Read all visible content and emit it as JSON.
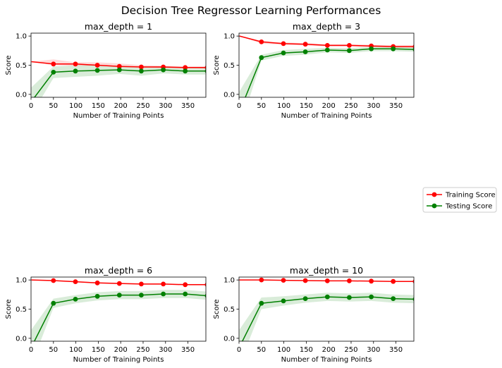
{
  "figure": {
    "title": "Decision Tree Regressor Learning Performances"
  },
  "colors": {
    "training": "#ff0000",
    "testing": "#008000"
  },
  "legend": {
    "placement": "right",
    "items": [
      {
        "label": "Training Score",
        "color": "#ff0000"
      },
      {
        "label": "Testing Score",
        "color": "#008000"
      }
    ]
  },
  "chart_data": [
    {
      "type": "line",
      "title": "max_depth = 1",
      "xlabel": "Number of Training Points",
      "ylabel": "Score",
      "xlim": [
        0,
        390
      ],
      "ylim": [
        -0.05,
        1.05
      ],
      "xticks": [
        0,
        50,
        100,
        150,
        200,
        250,
        300,
        350
      ],
      "yticks": [
        0.0,
        0.5,
        1.0
      ],
      "ytick_labels": [
        "0.0",
        "0.5",
        "1.0"
      ],
      "grid": false,
      "x": [
        1,
        50,
        99,
        148,
        197,
        246,
        295,
        344,
        393
      ],
      "series": [
        {
          "name": "Training Score",
          "values": [
            0.56,
            0.52,
            0.52,
            0.5,
            0.48,
            0.47,
            0.47,
            0.46,
            0.46
          ],
          "band": [
            [
              0.56,
              0.56
            ],
            [
              0.5,
              0.6
            ],
            [
              0.49,
              0.55
            ],
            [
              0.49,
              0.55
            ],
            [
              0.47,
              0.53
            ],
            [
              0.46,
              0.5
            ],
            [
              0.45,
              0.49
            ],
            [
              0.45,
              0.48
            ],
            [
              0.44,
              0.48
            ]
          ]
        },
        {
          "name": "Testing Score",
          "values": [
            -0.12,
            0.38,
            0.4,
            0.41,
            0.42,
            0.4,
            0.42,
            0.4,
            0.4
          ],
          "band": [
            [
              -0.35,
              0.12
            ],
            [
              0.28,
              0.48
            ],
            [
              0.3,
              0.5
            ],
            [
              0.32,
              0.5
            ],
            [
              0.35,
              0.49
            ],
            [
              0.32,
              0.48
            ],
            [
              0.36,
              0.48
            ],
            [
              0.34,
              0.46
            ],
            [
              0.34,
              0.46
            ]
          ]
        }
      ]
    },
    {
      "type": "line",
      "title": "max_depth = 3",
      "xlabel": "Number of Training Points",
      "ylabel": "Score",
      "xlim": [
        0,
        390
      ],
      "ylim": [
        -0.05,
        1.05
      ],
      "xticks": [
        0,
        50,
        100,
        150,
        200,
        250,
        300,
        350
      ],
      "yticks": [
        0.0,
        0.5,
        1.0
      ],
      "ytick_labels": [
        "0.0",
        "0.5",
        "1.0"
      ],
      "grid": false,
      "x": [
        1,
        50,
        99,
        148,
        197,
        246,
        295,
        344,
        393
      ],
      "series": [
        {
          "name": "Training Score",
          "values": [
            1.0,
            0.9,
            0.87,
            0.86,
            0.84,
            0.84,
            0.83,
            0.82,
            0.82
          ],
          "band": [
            [
              1.0,
              1.0
            ],
            [
              0.87,
              0.92
            ],
            [
              0.85,
              0.89
            ],
            [
              0.84,
              0.88
            ],
            [
              0.82,
              0.86
            ],
            [
              0.82,
              0.86
            ],
            [
              0.81,
              0.85
            ],
            [
              0.8,
              0.84
            ],
            [
              0.8,
              0.84
            ]
          ]
        },
        {
          "name": "Testing Score",
          "values": [
            -0.3,
            0.63,
            0.71,
            0.73,
            0.76,
            0.75,
            0.78,
            0.78,
            0.77
          ],
          "band": [
            [
              -0.6,
              0.05
            ],
            [
              0.58,
              0.68
            ],
            [
              0.66,
              0.76
            ],
            [
              0.68,
              0.78
            ],
            [
              0.72,
              0.8
            ],
            [
              0.71,
              0.79
            ],
            [
              0.74,
              0.82
            ],
            [
              0.74,
              0.82
            ],
            [
              0.73,
              0.81
            ]
          ]
        }
      ]
    },
    {
      "type": "line",
      "title": "max_depth = 6",
      "xlabel": "Number of Training Points",
      "ylabel": "Score",
      "xlim": [
        0,
        390
      ],
      "ylim": [
        -0.05,
        1.05
      ],
      "xticks": [
        0,
        50,
        100,
        150,
        200,
        250,
        300,
        350
      ],
      "yticks": [
        0.0,
        0.5,
        1.0
      ],
      "ytick_labels": [
        "0.0",
        "0.5",
        "1.0"
      ],
      "grid": false,
      "x": [
        1,
        50,
        99,
        148,
        197,
        246,
        295,
        344,
        393
      ],
      "series": [
        {
          "name": "Training Score",
          "values": [
            1.0,
            0.99,
            0.97,
            0.95,
            0.94,
            0.93,
            0.93,
            0.92,
            0.92
          ],
          "band": [
            [
              1.0,
              1.0
            ],
            [
              0.98,
              1.0
            ],
            [
              0.96,
              0.98
            ],
            [
              0.94,
              0.96
            ],
            [
              0.93,
              0.95
            ],
            [
              0.92,
              0.94
            ],
            [
              0.92,
              0.94
            ],
            [
              0.91,
              0.93
            ],
            [
              0.91,
              0.93
            ]
          ]
        },
        {
          "name": "Testing Score",
          "values": [
            -0.15,
            0.6,
            0.67,
            0.72,
            0.74,
            0.74,
            0.76,
            0.76,
            0.73
          ],
          "band": [
            [
              -0.45,
              0.15
            ],
            [
              0.52,
              0.68
            ],
            [
              0.6,
              0.74
            ],
            [
              0.65,
              0.79
            ],
            [
              0.67,
              0.81
            ],
            [
              0.67,
              0.81
            ],
            [
              0.69,
              0.83
            ],
            [
              0.69,
              0.83
            ],
            [
              0.66,
              0.8
            ]
          ]
        }
      ]
    },
    {
      "type": "line",
      "title": "max_depth = 10",
      "xlabel": "Number of Training Points",
      "ylabel": "Score",
      "xlim": [
        0,
        390
      ],
      "ylim": [
        -0.05,
        1.05
      ],
      "xticks": [
        0,
        50,
        100,
        150,
        200,
        250,
        300,
        350
      ],
      "yticks": [
        0.0,
        0.5,
        1.0
      ],
      "ytick_labels": [
        "0.0",
        "0.5",
        "1.0"
      ],
      "grid": false,
      "x": [
        1,
        50,
        99,
        148,
        197,
        246,
        295,
        344,
        393
      ],
      "series": [
        {
          "name": "Training Score",
          "values": [
            1.0,
            1.0,
            0.995,
            0.99,
            0.985,
            0.985,
            0.98,
            0.975,
            0.975
          ],
          "band": [
            [
              1.0,
              1.0
            ],
            [
              0.995,
              1.0
            ],
            [
              0.99,
              1.0
            ],
            [
              0.985,
              0.995
            ],
            [
              0.98,
              0.99
            ],
            [
              0.98,
              0.99
            ],
            [
              0.975,
              0.985
            ],
            [
              0.97,
              0.98
            ],
            [
              0.97,
              0.98
            ]
          ]
        },
        {
          "name": "Testing Score",
          "values": [
            -0.15,
            0.6,
            0.64,
            0.68,
            0.71,
            0.7,
            0.71,
            0.68,
            0.67
          ],
          "band": [
            [
              -0.45,
              0.15
            ],
            [
              0.5,
              0.7
            ],
            [
              0.56,
              0.72
            ],
            [
              0.61,
              0.75
            ],
            [
              0.64,
              0.78
            ],
            [
              0.63,
              0.77
            ],
            [
              0.64,
              0.78
            ],
            [
              0.61,
              0.75
            ],
            [
              0.6,
              0.74
            ]
          ]
        }
      ]
    }
  ]
}
